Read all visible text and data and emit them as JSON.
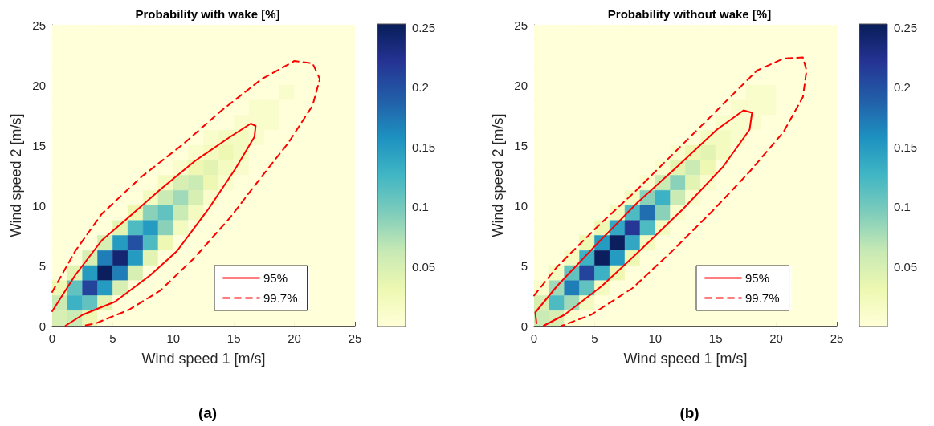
{
  "chart_data": [
    {
      "type": "heatmap",
      "title": "Probability with wake [%]",
      "xlabel": "Wind speed 1 [m/s]",
      "ylabel": "Wind speed 2 [m/s]",
      "annotations": [
        "(a)"
      ],
      "xlim": [
        0,
        25
      ],
      "ylim": [
        0,
        25
      ],
      "xticks": [
        0,
        5,
        10,
        15,
        20,
        25
      ],
      "yticks": [
        0,
        5,
        10,
        15,
        20,
        25
      ],
      "clim": [
        0,
        0.253
      ],
      "cticks": [
        0.05,
        0.1,
        0.15,
        0.2,
        0.25
      ],
      "legend": "bottom right",
      "cells": [
        [
          0,
          0,
          0,
          0,
          0,
          0,
          0,
          0,
          0,
          0,
          0,
          0,
          0,
          0,
          0,
          0,
          0,
          0,
          0,
          0
        ],
        [
          0,
          0,
          0,
          0,
          0,
          0,
          0,
          0,
          0,
          0,
          0,
          0,
          0,
          0,
          0,
          0,
          0,
          0,
          0,
          0
        ],
        [
          0,
          0,
          0,
          0,
          0,
          0,
          0,
          0,
          0,
          0,
          0,
          0,
          0,
          0,
          0,
          0,
          0,
          0,
          0,
          0
        ],
        [
          0,
          0,
          0,
          0,
          0,
          0,
          0,
          0,
          0,
          0,
          0,
          0,
          0,
          0,
          0,
          0,
          0,
          0,
          0,
          0
        ],
        [
          0,
          0,
          0,
          0,
          0,
          0,
          0,
          0,
          0,
          0,
          0,
          0,
          0,
          0,
          0,
          0.01,
          0,
          0,
          0,
          0
        ],
        [
          0,
          0,
          0,
          0,
          0,
          0,
          0,
          0,
          0,
          0,
          0,
          0,
          0,
          0.01,
          0.01,
          0,
          0,
          0,
          0,
          0
        ],
        [
          0,
          0,
          0,
          0,
          0,
          0,
          0,
          0,
          0,
          0,
          0,
          0,
          0.01,
          0.01,
          0.01,
          0,
          0,
          0,
          0,
          0
        ],
        [
          0,
          0,
          0,
          0,
          0,
          0,
          0,
          0,
          0,
          0,
          0.01,
          0.02,
          0.02,
          0.01,
          0,
          0,
          0,
          0,
          0,
          0
        ],
        [
          0,
          0,
          0,
          0,
          0,
          0,
          0,
          0,
          0,
          0.01,
          0.02,
          0.03,
          0.02,
          0,
          0,
          0,
          0,
          0,
          0,
          0
        ],
        [
          0,
          0,
          0,
          0,
          0,
          0,
          0,
          0,
          0.01,
          0.03,
          0.04,
          0.02,
          0.01,
          0,
          0,
          0,
          0,
          0,
          0,
          0
        ],
        [
          0,
          0,
          0,
          0,
          0,
          0,
          0,
          0.02,
          0.05,
          0.06,
          0.03,
          0.01,
          0,
          0,
          0,
          0,
          0,
          0,
          0,
          0
        ],
        [
          0,
          0,
          0,
          0,
          0,
          0,
          0.02,
          0.06,
          0.08,
          0.05,
          0.01,
          0,
          0,
          0,
          0,
          0,
          0,
          0,
          0,
          0
        ],
        [
          0,
          0,
          0,
          0,
          0,
          0.03,
          0.09,
          0.11,
          0.06,
          0.02,
          0,
          0,
          0,
          0,
          0,
          0,
          0,
          0,
          0,
          0
        ],
        [
          0,
          0,
          0,
          0,
          0.04,
          0.12,
          0.15,
          0.09,
          0.02,
          0,
          0,
          0,
          0,
          0,
          0,
          0,
          0,
          0,
          0,
          0
        ],
        [
          0,
          0,
          0,
          0.05,
          0.15,
          0.2,
          0.12,
          0.03,
          0,
          0,
          0,
          0,
          0,
          0,
          0,
          0,
          0,
          0,
          0,
          0
        ],
        [
          0,
          0,
          0.05,
          0.17,
          0.24,
          0.15,
          0.04,
          0,
          0,
          0,
          0,
          0,
          0,
          0,
          0,
          0,
          0,
          0,
          0,
          0
        ],
        [
          0,
          0.04,
          0.15,
          0.25,
          0.17,
          0.05,
          0,
          0,
          0,
          0,
          0,
          null,
          null,
          null,
          null,
          null,
          null,
          0,
          0,
          0
        ],
        [
          0.03,
          0.11,
          0.21,
          0.15,
          0.05,
          0,
          0,
          0,
          0,
          0,
          0,
          null,
          null,
          null,
          null,
          null,
          null,
          0,
          0,
          0
        ],
        [
          0.06,
          0.13,
          0.11,
          0.04,
          0,
          0,
          0,
          0,
          0,
          0,
          0,
          null,
          null,
          null,
          null,
          null,
          null,
          0,
          0,
          0
        ],
        [
          0.05,
          0.06,
          0.03,
          0,
          0,
          0,
          0,
          0,
          0,
          0,
          0,
          0,
          0,
          0,
          0,
          0,
          0,
          0,
          0,
          0
        ]
      ],
      "series": [
        {
          "type": "line",
          "name": "95%",
          "color": "#ff0000",
          "line_style": "solid",
          "x": [
            0,
            1.9,
            4.1,
            6.3,
            8.9,
            11.8,
            14.7,
            16.4,
            16.8,
            16.7,
            15.1,
            12.9,
            10.3,
            8.1,
            5.2,
            2.5,
            1.1
          ],
          "values": [
            1.2,
            4.2,
            7.1,
            9.0,
            11.3,
            13.7,
            15.7,
            16.8,
            16.6,
            15.7,
            13.0,
            9.7,
            6.2,
            4.2,
            2.0,
            0.9,
            0
          ]
        },
        {
          "type": "line",
          "name": "99.7%",
          "color": "#ff0000",
          "line_style": "dashed",
          "x": [
            0,
            1.9,
            4.1,
            7.4,
            10.7,
            14.0,
            17.3,
            20.0,
            21.5,
            22.1,
            21.5,
            19.5,
            17.3,
            14.7,
            11.8,
            8.9,
            6.3,
            3.6,
            2.6
          ],
          "values": [
            2.8,
            6.2,
            9.3,
            12.4,
            15.0,
            17.9,
            20.5,
            22.0,
            21.8,
            20.5,
            18.3,
            15.2,
            12.4,
            9.0,
            5.7,
            2.9,
            1.3,
            0.2,
            0
          ]
        }
      ]
    },
    {
      "type": "heatmap",
      "title": "Probability without wake [%]",
      "xlabel": "Wind speed 1 [m/s]",
      "ylabel": "Wind speed 2 [m/s]",
      "annotations": [
        "(b)"
      ],
      "xlim": [
        0,
        25
      ],
      "ylim": [
        0,
        25
      ],
      "xticks": [
        0,
        5,
        10,
        15,
        20,
        25
      ],
      "yticks": [
        0,
        5,
        10,
        15,
        20,
        25
      ],
      "clim": [
        0,
        0.253
      ],
      "cticks": [
        0.05,
        0.1,
        0.15,
        0.2,
        0.25
      ],
      "legend": "bottom right",
      "cells": [
        [
          0,
          0,
          0,
          0,
          0,
          0,
          0,
          0,
          0,
          0,
          0,
          0,
          0,
          0,
          0,
          0,
          0,
          0,
          0,
          0
        ],
        [
          0,
          0,
          0,
          0,
          0,
          0,
          0,
          0,
          0,
          0,
          0,
          0,
          0,
          0,
          0,
          0,
          0,
          0,
          0,
          0
        ],
        [
          0,
          0,
          0,
          0,
          0,
          0,
          0,
          0,
          0,
          0,
          0,
          0,
          0,
          0,
          0,
          0,
          0,
          0,
          0,
          0
        ],
        [
          0,
          0,
          0,
          0,
          0,
          0,
          0,
          0,
          0,
          0,
          0,
          0,
          0,
          0,
          0,
          0,
          0,
          0,
          0,
          0
        ],
        [
          0,
          0,
          0,
          0,
          0,
          0,
          0,
          0,
          0,
          0,
          0,
          0,
          0,
          0,
          0.01,
          0.01,
          0,
          0,
          0,
          0
        ],
        [
          0,
          0,
          0,
          0,
          0,
          0,
          0,
          0,
          0,
          0,
          0,
          0,
          0,
          0.01,
          0.01,
          0.01,
          0,
          0,
          0,
          0
        ],
        [
          0,
          0,
          0,
          0,
          0,
          0,
          0,
          0,
          0,
          0,
          0,
          0,
          0.01,
          0.01,
          0.01,
          0,
          0,
          0,
          0,
          0
        ],
        [
          0,
          0,
          0,
          0,
          0,
          0,
          0,
          0,
          0,
          0,
          0,
          0.02,
          0.02,
          0.01,
          0,
          0,
          0,
          0,
          0,
          0
        ],
        [
          0,
          0,
          0,
          0,
          0,
          0,
          0,
          0,
          0,
          0.01,
          0.03,
          0.04,
          0.02,
          0,
          0,
          0,
          0,
          0,
          0,
          0
        ],
        [
          0,
          0,
          0,
          0,
          0,
          0,
          0,
          0,
          0.01,
          0.04,
          0.06,
          0.03,
          0,
          0,
          0,
          0,
          0,
          0,
          0,
          0
        ],
        [
          0,
          0,
          0,
          0,
          0,
          0,
          0,
          0.01,
          0.06,
          0.09,
          0.04,
          0.01,
          0,
          0,
          0,
          0,
          0,
          0,
          0,
          0
        ],
        [
          0,
          0,
          0,
          0,
          0,
          0,
          0.02,
          0.09,
          0.13,
          0.06,
          0.01,
          0,
          0,
          0,
          0,
          0,
          0,
          0,
          0,
          0
        ],
        [
          0,
          0,
          0,
          0,
          0,
          0.02,
          0.12,
          0.18,
          0.09,
          0.01,
          0,
          0,
          0,
          0,
          0,
          0,
          0,
          0,
          0,
          0
        ],
        [
          0,
          0,
          0,
          0,
          0.03,
          0.14,
          0.22,
          0.12,
          0.02,
          0,
          0,
          0,
          0,
          0,
          0,
          0,
          0,
          0,
          0,
          0
        ],
        [
          0,
          0,
          0,
          0.03,
          0.15,
          0.25,
          0.14,
          0.02,
          0,
          0,
          0,
          0,
          0,
          0,
          0,
          0,
          0,
          0,
          0,
          0
        ],
        [
          0,
          0,
          0.02,
          0.13,
          0.25,
          0.15,
          0.03,
          0,
          0,
          0,
          0,
          0,
          0,
          0,
          0,
          0,
          0,
          0,
          0,
          0
        ],
        [
          0,
          0.02,
          0.11,
          0.21,
          0.13,
          0.03,
          0,
          0,
          0,
          0,
          0,
          null,
          null,
          null,
          null,
          null,
          null,
          0,
          0,
          0
        ],
        [
          0.01,
          0.08,
          0.17,
          0.11,
          0.02,
          0,
          0,
          0,
          0,
          0,
          0,
          null,
          null,
          null,
          null,
          null,
          null,
          0,
          0,
          0
        ],
        [
          0.05,
          0.12,
          0.08,
          0.02,
          0,
          0,
          0,
          0,
          0,
          0,
          0,
          null,
          null,
          null,
          null,
          null,
          null,
          0,
          0,
          0
        ],
        [
          0.06,
          0.05,
          0.01,
          0,
          0,
          0,
          0,
          0,
          0,
          0,
          0,
          0,
          0,
          0,
          0,
          0,
          0,
          0,
          0,
          0
        ]
      ],
      "series": [
        {
          "type": "line",
          "name": "95%",
          "color": "#ff0000",
          "line_style": "solid",
          "x": [
            0.2,
            0.1,
            1.9,
            5.2,
            8.5,
            11.8,
            15.1,
            17.3,
            18.0,
            17.8,
            15.6,
            12.3,
            8.9,
            5.6,
            2.5,
            0.8
          ],
          "values": [
            0.2,
            1.1,
            3.3,
            6.8,
            10.2,
            13.2,
            16.3,
            17.9,
            17.7,
            16.3,
            13.2,
            9.7,
            6.4,
            3.3,
            0.9,
            0
          ]
        },
        {
          "type": "line",
          "name": "99.7%",
          "color": "#ff0000",
          "line_style": "dashed",
          "x": [
            0,
            1.9,
            5.2,
            8.5,
            11.8,
            15.1,
            18.4,
            20.6,
            22.2,
            22.5,
            22.2,
            20.6,
            17.8,
            14.7,
            11.4,
            8.1,
            4.7,
            2.3
          ],
          "values": [
            2.5,
            4.9,
            8.2,
            11.3,
            14.6,
            17.9,
            21.2,
            22.2,
            22.3,
            21.2,
            19.0,
            16.1,
            12.8,
            9.5,
            6.2,
            3.1,
            0.9,
            0
          ]
        }
      ]
    }
  ]
}
